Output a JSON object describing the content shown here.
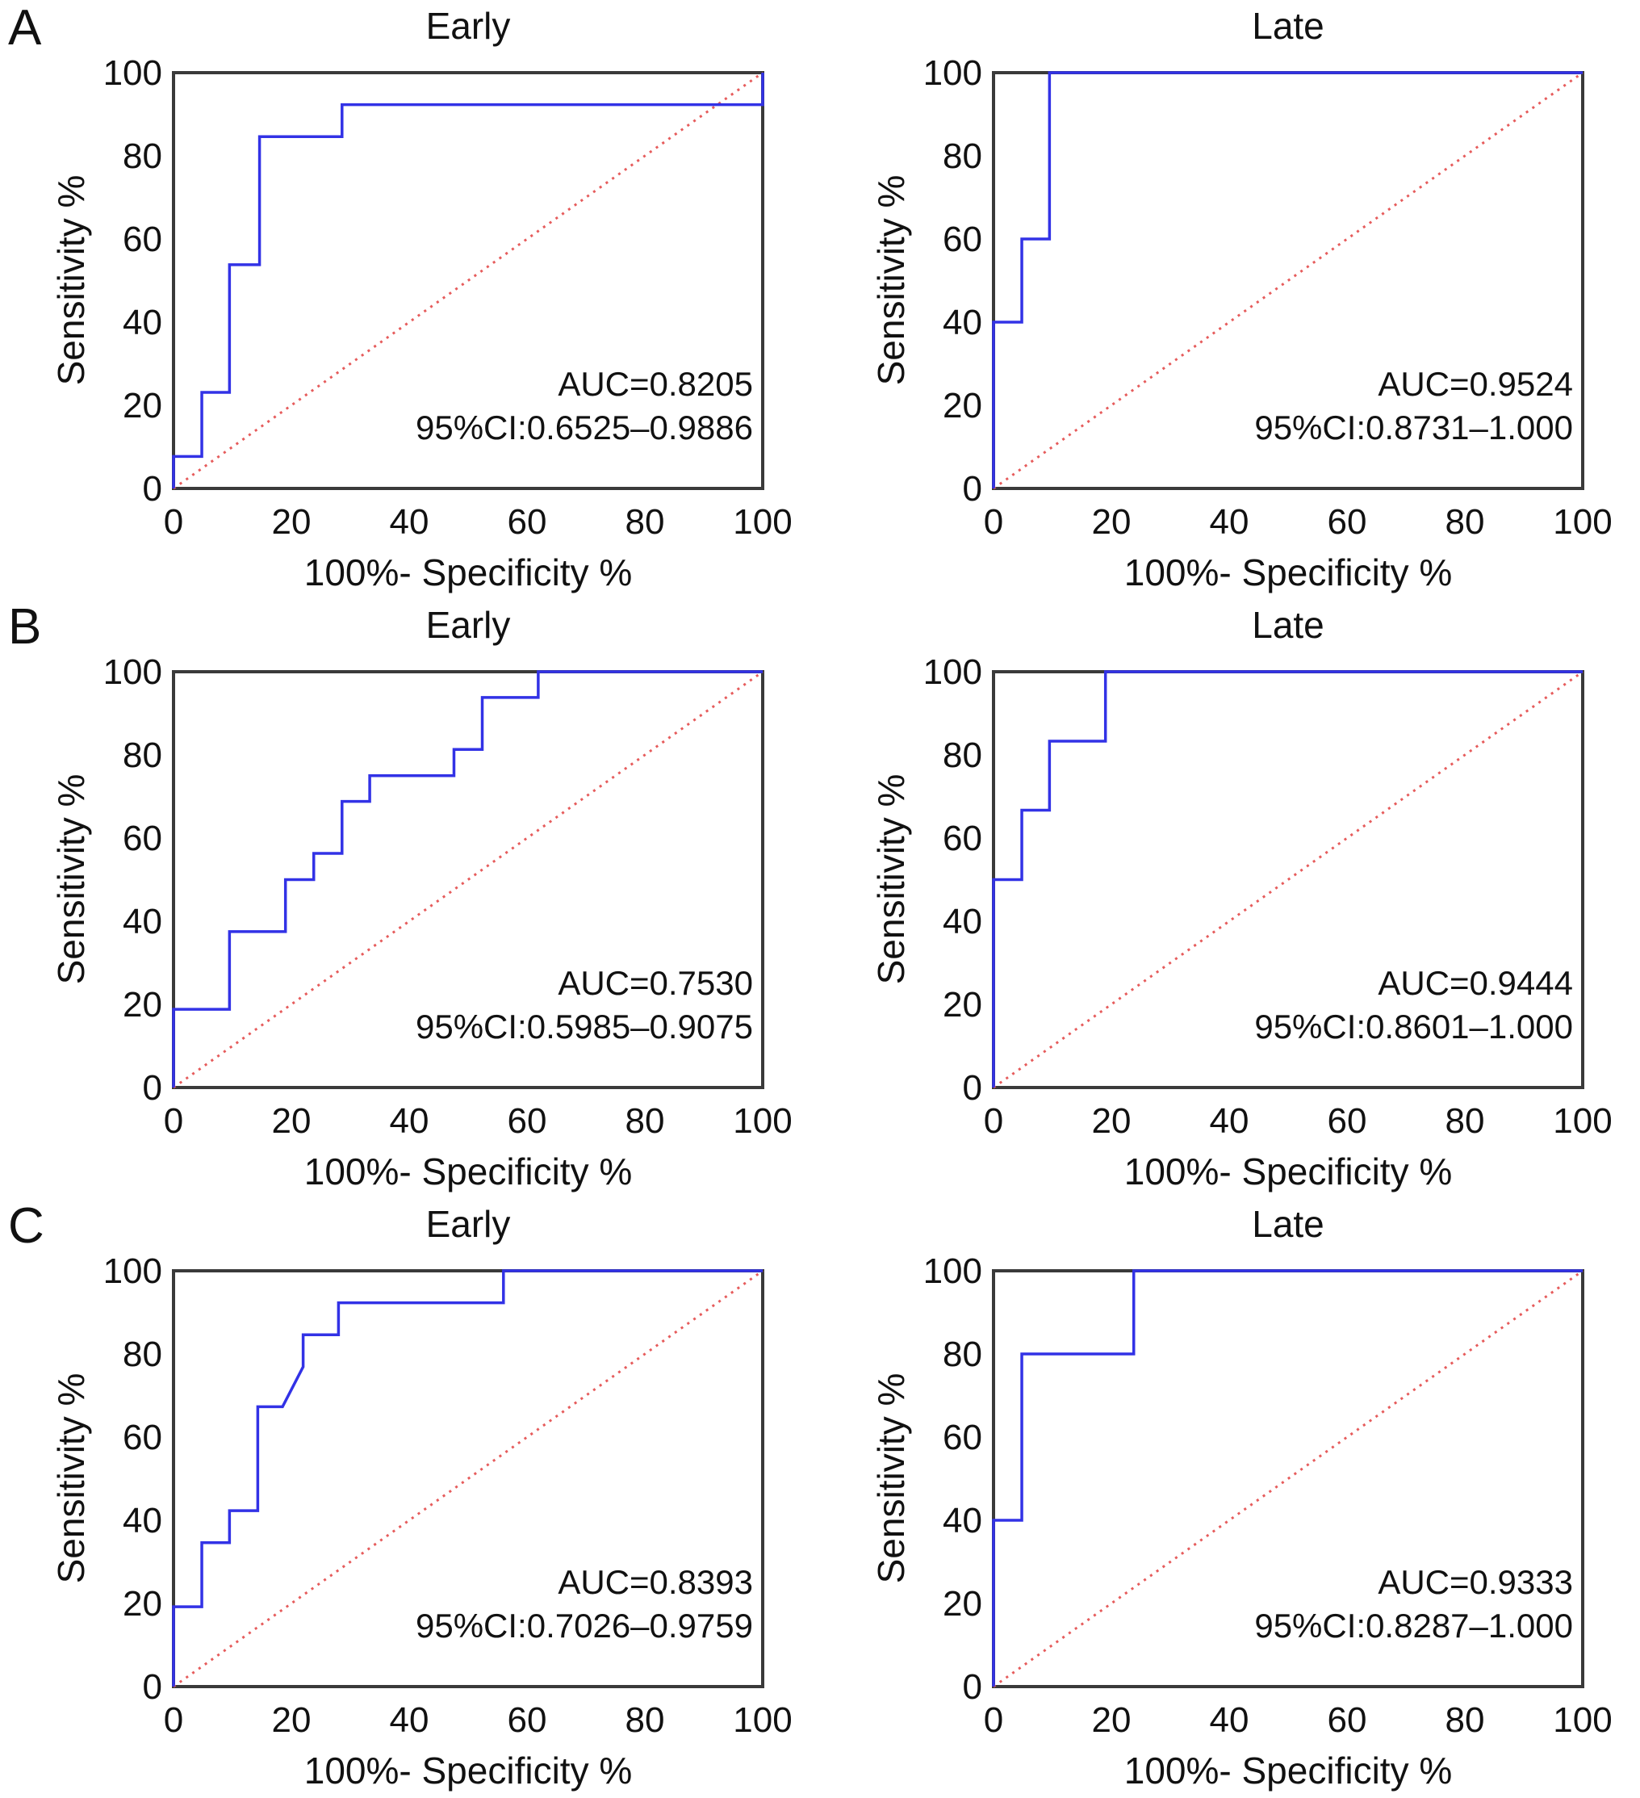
{
  "figure_title": "ROC curves, Early vs Late, panels A-C",
  "colors": {
    "roc_curve": "#3232e6",
    "reference_line": "#e65c5c",
    "axis": "#3a3a3a",
    "text": "#111111",
    "background": "#ffffff"
  },
  "chart_data": [
    {
      "type": "line",
      "panel_label": "A",
      "title": "Early",
      "xlabel": "100%- Specificity %",
      "ylabel": "Sensitivity %",
      "xlim": [
        0,
        100
      ],
      "ylim": [
        0,
        100
      ],
      "xticks": [
        0,
        20,
        40,
        60,
        80,
        100
      ],
      "yticks": [
        0,
        20,
        40,
        60,
        80,
        100
      ],
      "grid": false,
      "annotations": [
        "AUC=0.8205",
        "95%CI:0.6525–0.9886"
      ],
      "series": [
        {
          "name": "chance-reference",
          "color": "#e65c5c",
          "style": "dotted",
          "x": [
            0,
            100
          ],
          "y": [
            0,
            100
          ]
        },
        {
          "name": "ROC curve",
          "color": "#3232e6",
          "style": "solid",
          "x": [
            0,
            0,
            4.8,
            4.8,
            9.5,
            9.5,
            14.6,
            14.6,
            28.6,
            28.6,
            100,
            100
          ],
          "y": [
            0,
            7.7,
            7.7,
            23.1,
            23.1,
            53.8,
            53.8,
            84.6,
            84.6,
            92.3,
            92.3,
            100
          ]
        }
      ]
    },
    {
      "type": "line",
      "panel_label": "",
      "title": "Late",
      "xlabel": "100%- Specificity %",
      "ylabel": "Sensitivity %",
      "xlim": [
        0,
        100
      ],
      "ylim": [
        0,
        100
      ],
      "xticks": [
        0,
        20,
        40,
        60,
        80,
        100
      ],
      "yticks": [
        0,
        20,
        40,
        60,
        80,
        100
      ],
      "grid": false,
      "annotations": [
        "AUC=0.9524",
        "95%CI:0.8731–1.000"
      ],
      "series": [
        {
          "name": "chance-reference",
          "color": "#e65c5c",
          "style": "dotted",
          "x": [
            0,
            100
          ],
          "y": [
            0,
            100
          ]
        },
        {
          "name": "ROC curve",
          "color": "#3232e6",
          "style": "solid",
          "x": [
            0,
            0,
            4.8,
            4.8,
            9.5,
            9.5,
            100
          ],
          "y": [
            0,
            40,
            40,
            60,
            60,
            100,
            100
          ]
        }
      ]
    },
    {
      "type": "line",
      "panel_label": "B",
      "title": "Early",
      "xlabel": "100%- Specificity %",
      "ylabel": "Sensitivity %",
      "xlim": [
        0,
        100
      ],
      "ylim": [
        0,
        100
      ],
      "xticks": [
        0,
        20,
        40,
        60,
        80,
        100
      ],
      "yticks": [
        0,
        20,
        40,
        60,
        80,
        100
      ],
      "grid": false,
      "annotations": [
        "AUC=0.7530",
        "95%CI:0.5985–0.9075"
      ],
      "series": [
        {
          "name": "chance-reference",
          "color": "#e65c5c",
          "style": "dotted",
          "x": [
            0,
            100
          ],
          "y": [
            0,
            100
          ]
        },
        {
          "name": "ROC curve",
          "color": "#3232e6",
          "style": "solid",
          "x": [
            0,
            0,
            9.5,
            9.5,
            19,
            19,
            23.8,
            23.8,
            28.6,
            28.6,
            33.3,
            33.3,
            47.6,
            47.6,
            52.4,
            52.4,
            61.9,
            61.9,
            100
          ],
          "y": [
            0,
            18.8,
            18.8,
            37.5,
            37.5,
            50,
            50,
            56.3,
            56.3,
            68.8,
            68.8,
            75,
            75,
            81.3,
            81.3,
            93.8,
            93.8,
            100,
            100
          ]
        }
      ]
    },
    {
      "type": "line",
      "panel_label": "",
      "title": "Late",
      "xlabel": "100%- Specificity %",
      "ylabel": "Sensitivity %",
      "xlim": [
        0,
        100
      ],
      "ylim": [
        0,
        100
      ],
      "xticks": [
        0,
        20,
        40,
        60,
        80,
        100
      ],
      "yticks": [
        0,
        20,
        40,
        60,
        80,
        100
      ],
      "grid": false,
      "annotations": [
        "AUC=0.9444",
        "95%CI:0.8601–1.000"
      ],
      "series": [
        {
          "name": "chance-reference",
          "color": "#e65c5c",
          "style": "dotted",
          "x": [
            0,
            100
          ],
          "y": [
            0,
            100
          ]
        },
        {
          "name": "ROC curve",
          "color": "#3232e6",
          "style": "solid",
          "x": [
            0,
            0,
            4.8,
            4.8,
            9.5,
            9.5,
            19,
            19,
            100
          ],
          "y": [
            0,
            50,
            50,
            66.7,
            66.7,
            83.3,
            83.3,
            100,
            100
          ]
        }
      ]
    },
    {
      "type": "line",
      "panel_label": "C",
      "title": "Early",
      "xlabel": "100%- Specificity %",
      "ylabel": "Sensitivity %",
      "xlim": [
        0,
        100
      ],
      "ylim": [
        0,
        100
      ],
      "xticks": [
        0,
        20,
        40,
        60,
        80,
        100
      ],
      "yticks": [
        0,
        20,
        40,
        60,
        80,
        100
      ],
      "grid": false,
      "annotations": [
        "AUC=0.8393",
        "95%CI:0.7026–0.9759"
      ],
      "series": [
        {
          "name": "chance-reference",
          "color": "#e65c5c",
          "style": "dotted",
          "x": [
            0,
            100
          ],
          "y": [
            0,
            100
          ]
        },
        {
          "name": "ROC curve",
          "color": "#3232e6",
          "style": "solid",
          "x": [
            0,
            0,
            4.8,
            4.8,
            9.5,
            9.5,
            14.3,
            14.3,
            18.5,
            22,
            22,
            28,
            28,
            56,
            56,
            100
          ],
          "y": [
            0,
            19.2,
            19.2,
            34.6,
            34.6,
            42.3,
            42.3,
            67.3,
            67.3,
            76.9,
            84.6,
            84.6,
            92.3,
            92.3,
            100,
            100
          ]
        }
      ]
    },
    {
      "type": "line",
      "panel_label": "",
      "title": "Late",
      "xlabel": "100%- Specificity %",
      "ylabel": "Sensitivity %",
      "xlim": [
        0,
        100
      ],
      "ylim": [
        0,
        100
      ],
      "xticks": [
        0,
        20,
        40,
        60,
        80,
        100
      ],
      "yticks": [
        0,
        20,
        40,
        60,
        80,
        100
      ],
      "grid": false,
      "annotations": [
        "AUC=0.9333",
        "95%CI:0.8287–1.000"
      ],
      "series": [
        {
          "name": "chance-reference",
          "color": "#e65c5c",
          "style": "dotted",
          "x": [
            0,
            100
          ],
          "y": [
            0,
            100
          ]
        },
        {
          "name": "ROC curve",
          "color": "#3232e6",
          "style": "solid",
          "x": [
            0,
            0,
            4.8,
            4.8,
            23.8,
            23.8,
            100
          ],
          "y": [
            0,
            40,
            40,
            80,
            80,
            100,
            100
          ]
        }
      ]
    }
  ]
}
